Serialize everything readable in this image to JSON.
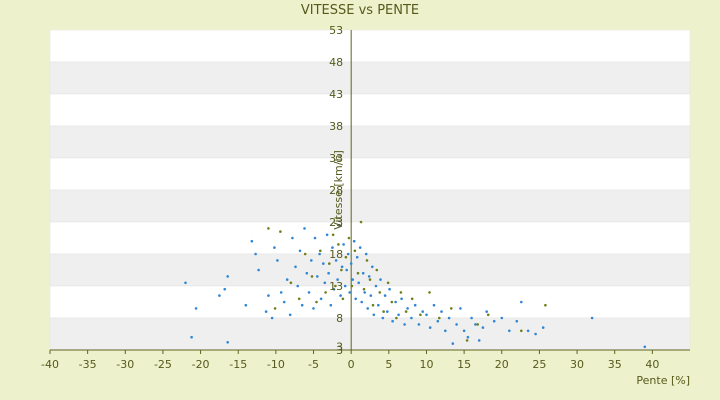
{
  "chart_data": {
    "type": "scatter",
    "title": "VITESSE vs PENTE",
    "xlabel": "Pente [%]",
    "ylabel": "Vitesse [km/h]",
    "xlim": [
      -40,
      45
    ],
    "ylim": [
      3,
      53
    ],
    "x_ticks": [
      "-40",
      "-35",
      "-30",
      "-25",
      "-20",
      "-15",
      "-10",
      "-5",
      "0",
      "5",
      "10",
      "15",
      "20",
      "25",
      "30",
      "35",
      "40"
    ],
    "y_ticks": [
      "3",
      "3",
      "8",
      "13",
      "18",
      "23",
      "28",
      "33",
      "38",
      "43",
      "48",
      "53"
    ],
    "grid": true,
    "legend": "none",
    "colors": {
      "background": "#eef2cc",
      "band_light": "#ffffff",
      "band_dark": "#efefef",
      "axis": "#5d6420",
      "series_blue": "#2f86d6",
      "series_olive": "#6f7f18"
    },
    "series": [
      {
        "color": "#2f86d6",
        "points": [
          [
            -22,
            13.5
          ],
          [
            -21.2,
            5
          ],
          [
            -20.6,
            9.5
          ],
          [
            -17.5,
            11.5
          ],
          [
            -16.8,
            12.5
          ],
          [
            -16.4,
            14.5
          ],
          [
            -16.4,
            4.2
          ],
          [
            -14,
            10
          ],
          [
            -13.2,
            20
          ],
          [
            -12.7,
            18
          ],
          [
            -12.3,
            15.5
          ],
          [
            -11.3,
            9
          ],
          [
            -11,
            11.5
          ],
          [
            -10.5,
            8
          ],
          [
            -10.2,
            19
          ],
          [
            -9.8,
            17
          ],
          [
            -9.3,
            12
          ],
          [
            -8.9,
            10.5
          ],
          [
            -8.5,
            14
          ],
          [
            -8.1,
            8.5
          ],
          [
            -7.8,
            20.5
          ],
          [
            -7.4,
            16
          ],
          [
            -7.1,
            13
          ],
          [
            -6.8,
            18.5
          ],
          [
            -6.5,
            10
          ],
          [
            -6.2,
            22
          ],
          [
            -5.9,
            15
          ],
          [
            -5.6,
            12
          ],
          [
            -5.3,
            17
          ],
          [
            -5.0,
            9.5
          ],
          [
            -4.8,
            20.5
          ],
          [
            -4.5,
            14.5
          ],
          [
            -4.2,
            18
          ],
          [
            -4.0,
            11
          ],
          [
            -3.7,
            16.5
          ],
          [
            -3.5,
            13.5
          ],
          [
            -3.2,
            21
          ],
          [
            -3.0,
            15
          ],
          [
            -2.7,
            10
          ],
          [
            -2.5,
            19
          ],
          [
            -2.3,
            12.5
          ],
          [
            -2.0,
            17
          ],
          [
            -1.8,
            14
          ],
          [
            -1.6,
            22.5
          ],
          [
            -1.4,
            11.5
          ],
          [
            -1.2,
            16
          ],
          [
            -1.0,
            19.5
          ],
          [
            -0.8,
            13
          ],
          [
            -0.6,
            15.5
          ],
          [
            -0.4,
            18
          ],
          [
            -0.2,
            12
          ],
          [
            0.0,
            16.5
          ],
          [
            0.2,
            14
          ],
          [
            0.4,
            20
          ],
          [
            0.6,
            11
          ],
          [
            0.8,
            17.5
          ],
          [
            1.0,
            13.5
          ],
          [
            1.2,
            19
          ],
          [
            1.4,
            10.5
          ],
          [
            1.6,
            15
          ],
          [
            1.8,
            12
          ],
          [
            2.0,
            18
          ],
          [
            2.2,
            9.5
          ],
          [
            2.4,
            14.5
          ],
          [
            2.6,
            11.5
          ],
          [
            2.8,
            16
          ],
          [
            3.0,
            8.5
          ],
          [
            3.3,
            13
          ],
          [
            3.6,
            10
          ],
          [
            3.9,
            14
          ],
          [
            4.2,
            8
          ],
          [
            4.5,
            11.5
          ],
          [
            4.8,
            9
          ],
          [
            5.1,
            12.5
          ],
          [
            5.5,
            7.5
          ],
          [
            5.9,
            10.5
          ],
          [
            6.3,
            8.5
          ],
          [
            6.7,
            11
          ],
          [
            7.1,
            7
          ],
          [
            7.5,
            9.5
          ],
          [
            8.0,
            8
          ],
          [
            8.5,
            10
          ],
          [
            9.0,
            7
          ],
          [
            9.5,
            9
          ],
          [
            10.0,
            8.5
          ],
          [
            10.5,
            6.5
          ],
          [
            11.0,
            10
          ],
          [
            11.5,
            7.5
          ],
          [
            12.0,
            9
          ],
          [
            12.5,
            6
          ],
          [
            13.0,
            8
          ],
          [
            13.5,
            4
          ],
          [
            14.0,
            7
          ],
          [
            14.5,
            9.5
          ],
          [
            15.0,
            6
          ],
          [
            15.5,
            5
          ],
          [
            16.0,
            8
          ],
          [
            16.5,
            7
          ],
          [
            17.0,
            4.5
          ],
          [
            17.5,
            6.5
          ],
          [
            18.0,
            9
          ],
          [
            19.0,
            7.5
          ],
          [
            20.0,
            8
          ],
          [
            21.0,
            6
          ],
          [
            22.0,
            7.5
          ],
          [
            22.6,
            10.5
          ],
          [
            23.5,
            6
          ],
          [
            24.5,
            5.5
          ],
          [
            25.5,
            6.5
          ],
          [
            32.0,
            8
          ],
          [
            39.0,
            3.5
          ]
        ]
      },
      {
        "color": "#6f7f18",
        "points": [
          [
            -11.0,
            22
          ],
          [
            -10.1,
            9.5
          ],
          [
            -9.4,
            21.5
          ],
          [
            -8.0,
            13.5
          ],
          [
            -6.9,
            11
          ],
          [
            -6.1,
            18
          ],
          [
            -5.2,
            14.5
          ],
          [
            -4.6,
            10.5
          ],
          [
            -4.1,
            18.5
          ],
          [
            -3.4,
            12
          ],
          [
            -2.9,
            16.5
          ],
          [
            -2.4,
            21
          ],
          [
            -2.1,
            13
          ],
          [
            -1.7,
            19.5
          ],
          [
            -1.3,
            15.5
          ],
          [
            -1.1,
            11
          ],
          [
            -0.7,
            17.5
          ],
          [
            -0.3,
            20.5
          ],
          [
            0.1,
            13
          ],
          [
            0.5,
            18.5
          ],
          [
            0.9,
            15
          ],
          [
            1.3,
            23
          ],
          [
            1.7,
            12.5
          ],
          [
            2.1,
            17
          ],
          [
            2.5,
            14
          ],
          [
            2.9,
            10
          ],
          [
            3.4,
            15.5
          ],
          [
            3.8,
            12
          ],
          [
            4.3,
            9
          ],
          [
            4.9,
            13.5
          ],
          [
            5.4,
            10.5
          ],
          [
            6.0,
            8
          ],
          [
            6.6,
            12
          ],
          [
            7.3,
            9
          ],
          [
            8.1,
            11
          ],
          [
            9.2,
            8.5
          ],
          [
            10.4,
            12
          ],
          [
            11.7,
            8
          ],
          [
            13.3,
            9.5
          ],
          [
            15.4,
            4.5
          ],
          [
            16.8,
            7
          ],
          [
            18.2,
            8.5
          ],
          [
            22.6,
            6
          ],
          [
            25.8,
            10
          ]
        ]
      }
    ]
  }
}
